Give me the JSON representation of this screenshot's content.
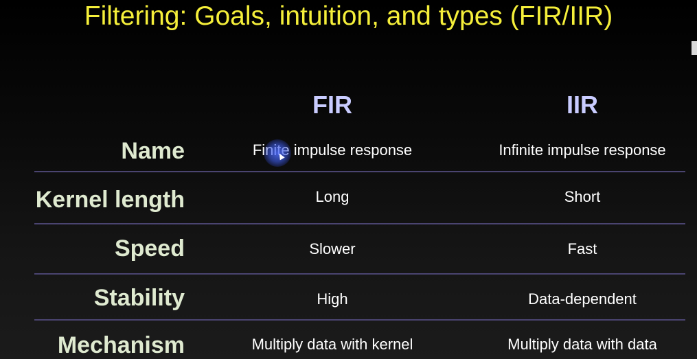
{
  "title": "Filtering: Goals, intuition, and types (FIR/IIR)",
  "columns": [
    "FIR",
    "IIR"
  ],
  "rows": [
    {
      "label": "Name",
      "fir": "Finite impulse response",
      "iir": "Infinite impulse response"
    },
    {
      "label": "Kernel length",
      "fir": "Long",
      "iir": "Short"
    },
    {
      "label": "Speed",
      "fir": "Slower",
      "iir": "Fast"
    },
    {
      "label": "Stability",
      "fir": "High",
      "iir": "Data-dependent"
    },
    {
      "label": "Mechanism",
      "fir": "Multiply data with kernel",
      "iir": "Multiply data with data"
    }
  ],
  "colors": {
    "title": "#f5ef3a",
    "header": "#c9ccff",
    "row_label": "#dfead0",
    "cell_text": "#ffffff",
    "divider": "#4a4470",
    "cursor_highlight": "#506eff"
  }
}
